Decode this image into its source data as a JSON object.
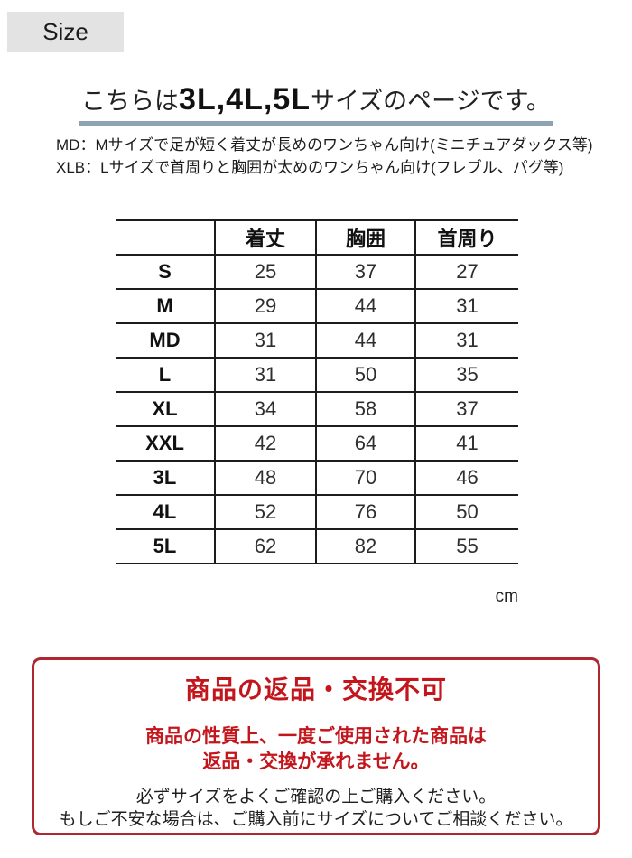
{
  "size_label": "Size",
  "heading": {
    "prefix": "こちらは",
    "sizes": "3L,4L,5L",
    "suffix": "サイズのページです。"
  },
  "notes": [
    "MD：Mサイズで足が短く着丈が長めのワンちゃん向け(ミニチュアダックス等)",
    "XLB：Lサイズで首周りと胸囲が太めのワンちゃん向け(フレブル、パグ等)"
  ],
  "size_table": {
    "columns": [
      "",
      "着丈",
      "胸囲",
      "首周り"
    ],
    "rows": [
      {
        "size": "S",
        "values": [
          "25",
          "37",
          "27"
        ]
      },
      {
        "size": "M",
        "values": [
          "29",
          "44",
          "31"
        ]
      },
      {
        "size": "MD",
        "values": [
          "31",
          "44",
          "31"
        ]
      },
      {
        "size": "L",
        "values": [
          "31",
          "50",
          "35"
        ]
      },
      {
        "size": "XL",
        "values": [
          "34",
          "58",
          "37"
        ]
      },
      {
        "size": "XXL",
        "values": [
          "42",
          "64",
          "41"
        ]
      },
      {
        "size": "3L",
        "values": [
          "48",
          "70",
          "46"
        ]
      },
      {
        "size": "4L",
        "values": [
          "52",
          "76",
          "50"
        ]
      },
      {
        "size": "5L",
        "values": [
          "62",
          "82",
          "55"
        ]
      }
    ],
    "unit": "cm"
  },
  "notice": {
    "title": "商品の返品・交換不可",
    "red_lines": [
      "商品の性質上、一度ご使用された商品は",
      "返品・交換が承れません。"
    ],
    "black_lines": [
      "必ずサイズをよくご確認の上ご購入ください。",
      "もしご不安な場合は、ご購入前にサイズについてご相談ください。"
    ]
  },
  "colors": {
    "heading_underline": "#8ba3b2",
    "notice_border": "#ad2831",
    "notice_text_red": "#c3161c",
    "size_label_bg": "#e3e3e3",
    "table_border": "#1c1c1c"
  }
}
